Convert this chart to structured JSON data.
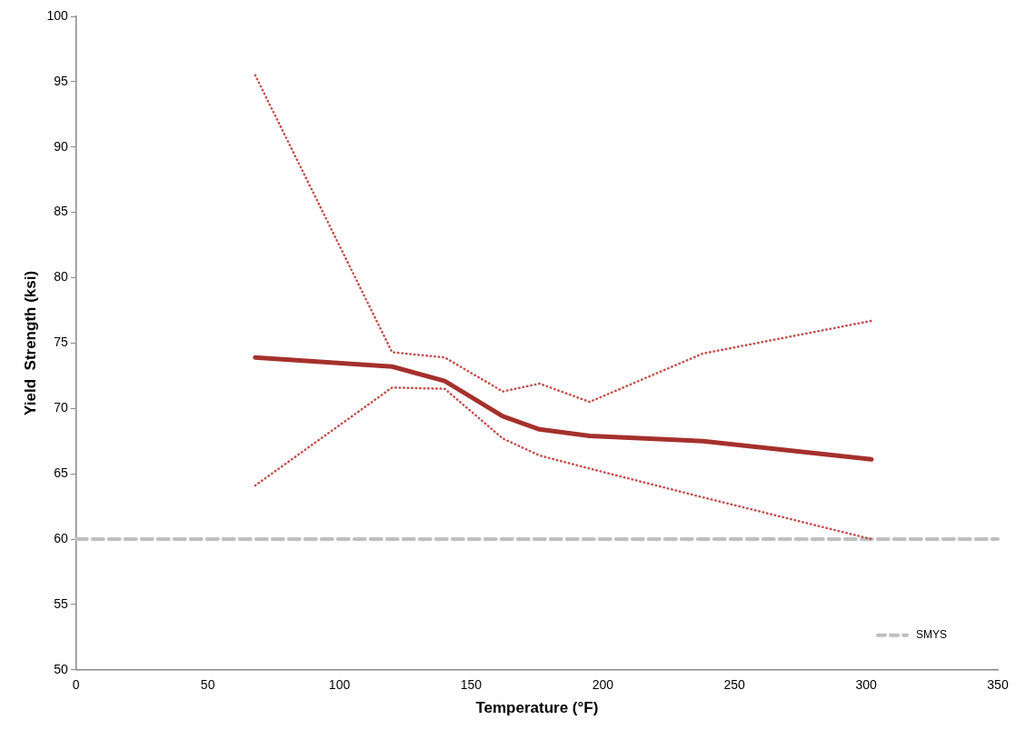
{
  "chart_data": {
    "type": "line",
    "xlabel": "Temperature (°F)",
    "ylabel": "Yield  Strength (ksi)",
    "x": [
      68,
      120,
      140,
      162,
      176,
      195,
      238,
      302
    ],
    "series": [
      {
        "color": "#c0504d",
        "line_style": "dotted",
        "values": [
          95.5,
          74.3,
          73.9,
          71.3,
          71.9,
          70.5,
          74.2,
          76.7
        ]
      },
      {
        "color": "#a5302c",
        "line_style": "solid",
        "values": [
          73.9,
          73.2,
          72.1,
          69.4,
          68.4,
          67.9,
          67.5,
          66.1
        ]
      },
      {
        "color": "#c0504d",
        "line_style": "dotted",
        "values": [
          64.1,
          71.6,
          71.5,
          67.7,
          66.4,
          65.4,
          63.2,
          60.0
        ]
      }
    ],
    "xlim": [
      0,
      350
    ],
    "xticks": [
      0,
      50,
      100,
      150,
      200,
      250,
      300,
      350
    ],
    "ylim": [
      50,
      100
    ],
    "yticks": [
      50,
      55,
      60,
      65,
      70,
      75,
      80,
      85,
      90,
      95,
      100
    ],
    "ref_lines": [
      {
        "axis": "y",
        "value": 60,
        "label": "SMYS",
        "color": "#bfbfbf",
        "line_style": "dashed"
      }
    ],
    "legend": "bottom right",
    "grid": false,
    "marker": "none"
  }
}
